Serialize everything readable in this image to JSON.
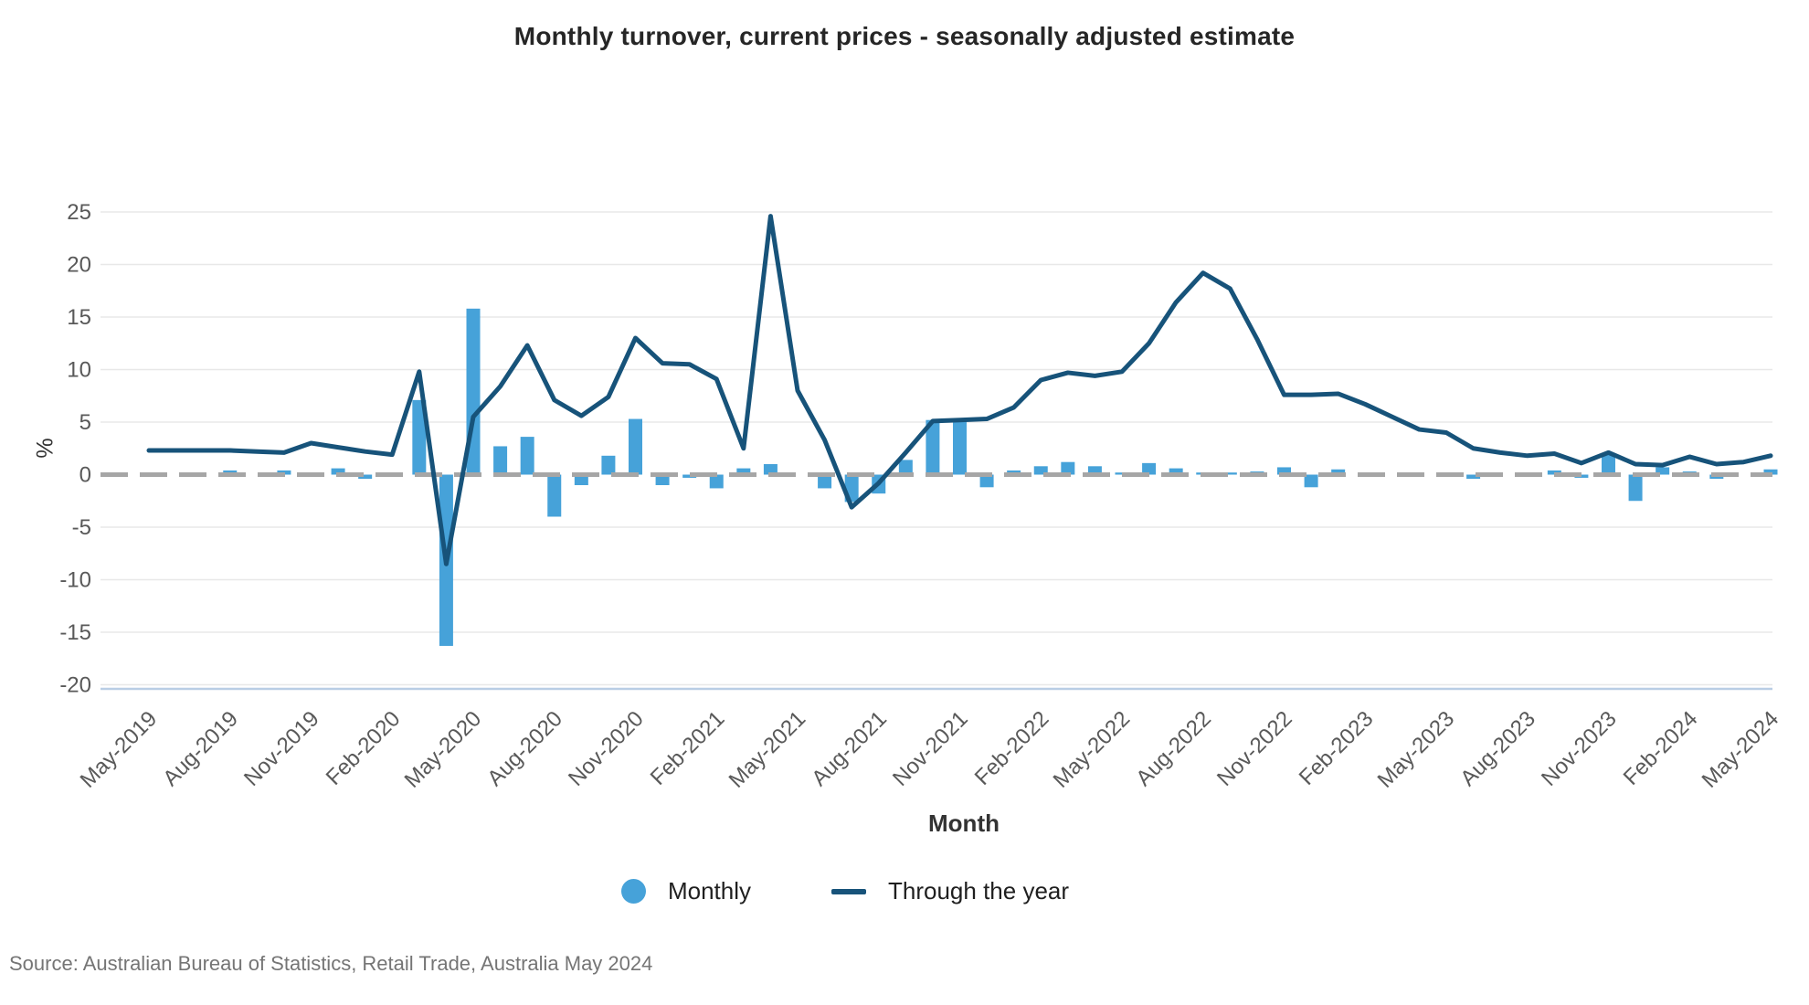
{
  "chart": {
    "title": "Monthly turnover, current prices - seasonally adjusted estimate",
    "ylabel": "%",
    "xlabel": "Month",
    "legend": [
      "Monthly",
      "Through the year"
    ],
    "source": "Source: Australian Bureau of Statistics, Retail Trade, Australia May 2024"
  },
  "chart_data": {
    "type": "bar+line",
    "title": "Monthly turnover, current prices - seasonally adjusted estimate",
    "xlabel": "Month",
    "ylabel": "%",
    "ylim": [
      -20,
      25
    ],
    "ytick_interval": 5,
    "xtick_every": 3,
    "grid": "horizontal",
    "zero_line": "dashed-gray",
    "legend_position": "bottom",
    "x": [
      "May-2019",
      "Jun-2019",
      "Jul-2019",
      "Aug-2019",
      "Sep-2019",
      "Oct-2019",
      "Nov-2019",
      "Dec-2019",
      "Jan-2020",
      "Feb-2020",
      "Mar-2020",
      "Apr-2020",
      "May-2020",
      "Jun-2020",
      "Jul-2020",
      "Aug-2020",
      "Sep-2020",
      "Oct-2020",
      "Nov-2020",
      "Dec-2020",
      "Jan-2021",
      "Feb-2021",
      "Mar-2021",
      "Apr-2021",
      "May-2021",
      "Jun-2021",
      "Jul-2021",
      "Aug-2021",
      "Sep-2021",
      "Oct-2021",
      "Nov-2021",
      "Dec-2021",
      "Jan-2022",
      "Feb-2022",
      "Mar-2022",
      "Apr-2022",
      "May-2022",
      "Jun-2022",
      "Jul-2022",
      "Aug-2022",
      "Sep-2022",
      "Oct-2022",
      "Nov-2022",
      "Dec-2022",
      "Jan-2023",
      "Feb-2023",
      "Mar-2023",
      "Apr-2023",
      "May-2023",
      "Jun-2023",
      "Jul-2023",
      "Aug-2023",
      "Sep-2023",
      "Oct-2023",
      "Nov-2023",
      "Dec-2023",
      "Jan-2024",
      "Feb-2024",
      "Mar-2024",
      "Apr-2024",
      "May-2024"
    ],
    "series": [
      {
        "name": "Monthly",
        "type": "bar",
        "color": "#46a2d9",
        "values": [
          0.2,
          0.0,
          0.0,
          0.4,
          0.0,
          0.4,
          0.0,
          0.6,
          -0.4,
          0.0,
          7.1,
          -16.3,
          15.8,
          2.7,
          3.6,
          -4.0,
          -1.0,
          1.8,
          5.3,
          -1.0,
          -0.3,
          -1.3,
          0.6,
          1.0,
          0.0,
          -1.3,
          -2.6,
          -1.8,
          1.4,
          5.2,
          5.3,
          -1.2,
          0.4,
          0.8,
          1.2,
          0.8,
          0.2,
          1.1,
          0.6,
          0.2,
          0.2,
          0.3,
          0.7,
          -1.2,
          0.5,
          0.1,
          0.0,
          0.0,
          0.0,
          -0.4,
          0.0,
          0.0,
          0.4,
          -0.3,
          2.0,
          -2.5,
          0.7,
          0.3,
          -0.4,
          0.0,
          0.5
        ]
      },
      {
        "name": "Through the year",
        "type": "line",
        "color": "#17537a",
        "values": [
          2.3,
          2.3,
          2.3,
          2.3,
          2.2,
          2.1,
          3.0,
          2.6,
          2.2,
          1.9,
          9.8,
          -8.5,
          5.5,
          8.4,
          12.3,
          7.1,
          5.6,
          7.4,
          13.0,
          10.6,
          10.5,
          9.1,
          2.5,
          24.6,
          8.0,
          3.3,
          -3.1,
          -0.8,
          2.1,
          5.1,
          5.2,
          5.3,
          6.4,
          9.0,
          9.7,
          9.4,
          9.8,
          12.5,
          16.4,
          19.2,
          17.7,
          12.9,
          7.6,
          7.6,
          7.7,
          6.7,
          5.5,
          4.3,
          4.0,
          2.5,
          2.1,
          1.8,
          2.0,
          1.1,
          2.1,
          1.0,
          0.9,
          1.7,
          1.0,
          1.2,
          1.8
        ]
      }
    ],
    "style": {
      "grid_color": "#e8e8e8",
      "zero_line_color": "#a6a6a6",
      "baseline_color": "#b9cde5",
      "axis_text_color": "#595959",
      "bar_color": "#46a2d9",
      "line_color": "#17537a"
    }
  }
}
